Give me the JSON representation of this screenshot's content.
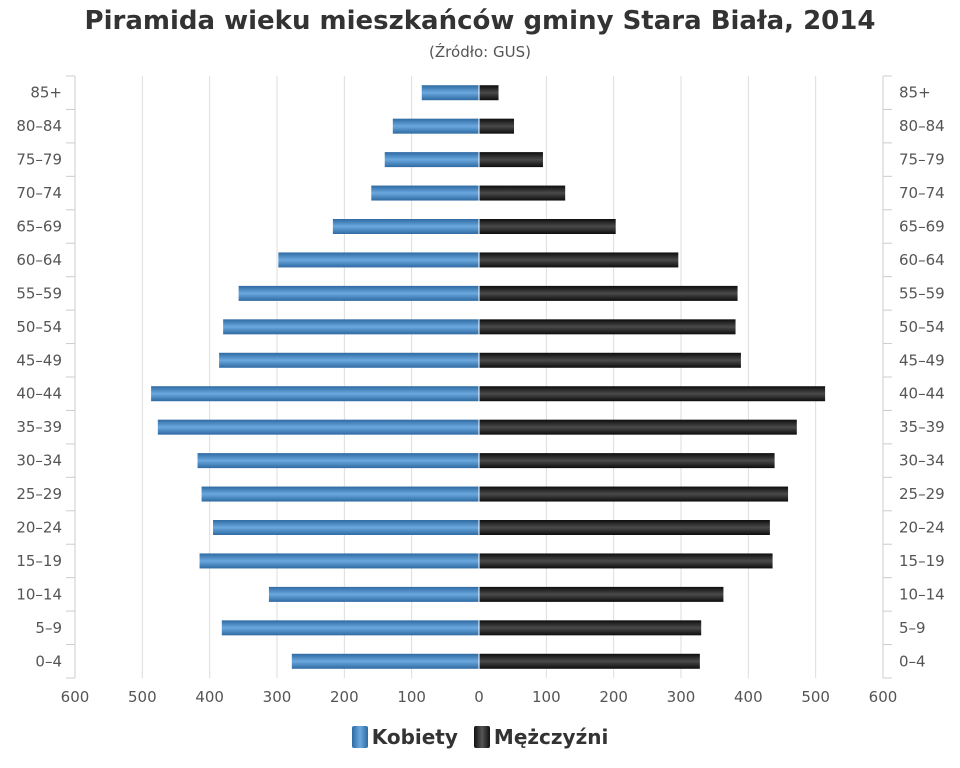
{
  "title": "Piramida wieku mieszkańców gminy Stara Biała, 2014",
  "subtitle": "(Źródło: GUS)",
  "legend": {
    "female": "Kobiety",
    "male": "Mężczyźni"
  },
  "colors": {
    "female": "#3d7fc0",
    "male": "#1a1a1a",
    "grid": "#dddddd",
    "axis": "#cccccc"
  },
  "chart_data": {
    "type": "bar",
    "orientation": "horizontal-pyramid",
    "categories": [
      "85+",
      "80–84",
      "75–79",
      "70–74",
      "65–69",
      "60–64",
      "55–59",
      "50–54",
      "45–49",
      "40–44",
      "35–39",
      "30–34",
      "25–29",
      "20–24",
      "15–19",
      "10–14",
      "5–9",
      "0–4"
    ],
    "series": [
      {
        "name": "Kobiety",
        "side": "left",
        "values": [
          85,
          128,
          140,
          160,
          217,
          298,
          357,
          380,
          386,
          487,
          477,
          418,
          412,
          395,
          415,
          312,
          382,
          278
        ]
      },
      {
        "name": "Mężczyźni",
        "side": "right",
        "values": [
          29,
          52,
          95,
          128,
          203,
          296,
          384,
          381,
          389,
          514,
          472,
          439,
          459,
          432,
          436,
          363,
          330,
          328
        ]
      }
    ],
    "xlim": [
      -600,
      600
    ],
    "xticks": [
      -600,
      -500,
      -400,
      -300,
      -200,
      -100,
      0,
      100,
      200,
      300,
      400,
      500,
      600
    ],
    "xtick_labels": [
      "600",
      "500",
      "400",
      "300",
      "200",
      "100",
      "0",
      "100",
      "200",
      "300",
      "400",
      "500",
      "600"
    ],
    "grid": true,
    "legend_position": "bottom"
  }
}
